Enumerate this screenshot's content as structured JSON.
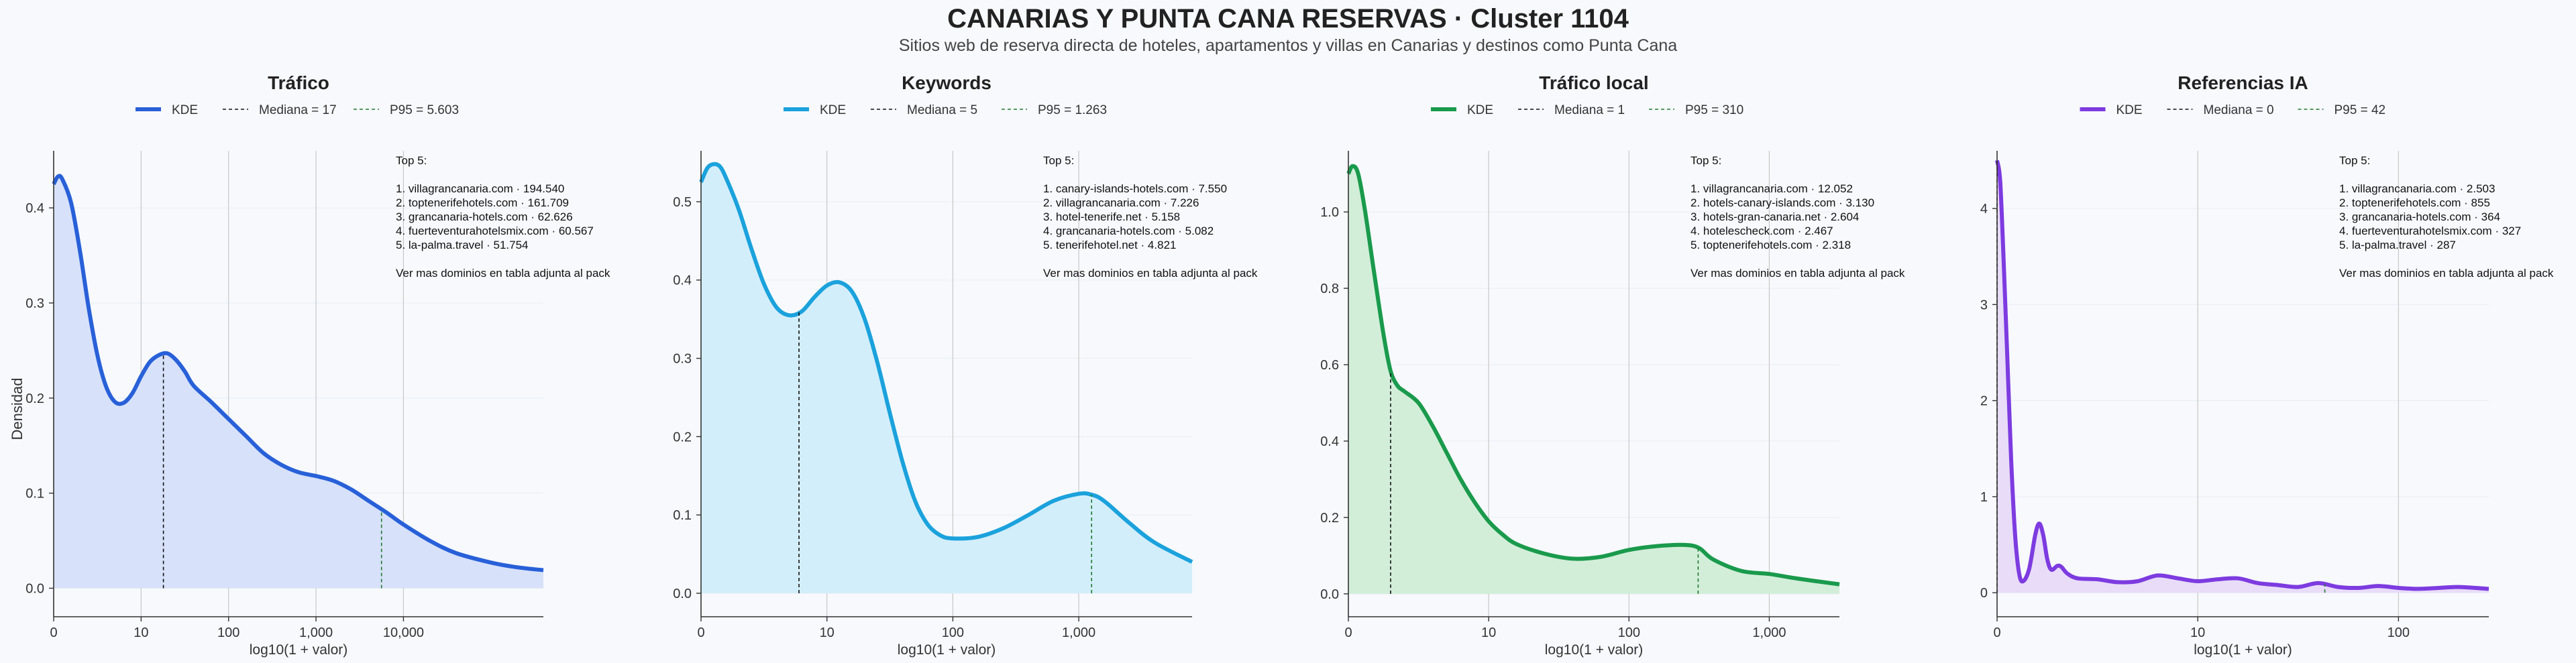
{
  "title": "CANARIAS Y PUNTA CANA RESERVAS · Cluster 1104",
  "subtitle": "Sitios web de reserva directa de hoteles, apartamentos y villas en Canarias y destinos como Punta Cana",
  "ylabel": "Densidad",
  "chart_data": [
    {
      "type": "area",
      "title": "Tráfico",
      "xlabel": "log10(1 + valor)",
      "ylabel": "Densidad",
      "color": "#2860d8",
      "fill": "#d7e1fa",
      "x_scale": "log10(1+x)",
      "xlim": [
        0,
        5.6
      ],
      "ylim": [
        -0.03,
        0.46
      ],
      "xticks": [
        {
          "v": 0,
          "label": "0"
        },
        {
          "v": 1,
          "label": "10"
        },
        {
          "v": 2,
          "label": "100"
        },
        {
          "v": 3,
          "label": "1,000"
        },
        {
          "v": 4,
          "label": "10,000"
        }
      ],
      "yticks": [
        0.0,
        0.1,
        0.2,
        0.3,
        0.4
      ],
      "ytick_labels": [
        "0.0",
        "0.1",
        "0.2",
        "0.3",
        "0.4"
      ],
      "legend": {
        "kde": "KDE",
        "median": "Mediana = 17",
        "p95": "P95 = 5.603"
      },
      "median_x": 1.255,
      "p95_x": 3.749,
      "kde": [
        [
          0,
          0.425
        ],
        [
          0.05,
          0.433
        ],
        [
          0.1,
          0.43
        ],
        [
          0.2,
          0.405
        ],
        [
          0.3,
          0.355
        ],
        [
          0.4,
          0.295
        ],
        [
          0.5,
          0.245
        ],
        [
          0.6,
          0.212
        ],
        [
          0.7,
          0.196
        ],
        [
          0.8,
          0.195
        ],
        [
          0.9,
          0.205
        ],
        [
          1.0,
          0.223
        ],
        [
          1.1,
          0.238
        ],
        [
          1.2,
          0.245
        ],
        [
          1.3,
          0.247
        ],
        [
          1.4,
          0.24
        ],
        [
          1.5,
          0.228
        ],
        [
          1.6,
          0.213
        ],
        [
          1.8,
          0.196
        ],
        [
          2.0,
          0.178
        ],
        [
          2.2,
          0.16
        ],
        [
          2.4,
          0.142
        ],
        [
          2.6,
          0.13
        ],
        [
          2.8,
          0.122
        ],
        [
          3.0,
          0.118
        ],
        [
          3.2,
          0.113
        ],
        [
          3.4,
          0.104
        ],
        [
          3.6,
          0.092
        ],
        [
          3.8,
          0.08
        ],
        [
          4.0,
          0.067
        ],
        [
          4.3,
          0.05
        ],
        [
          4.6,
          0.037
        ],
        [
          5.0,
          0.027
        ],
        [
          5.3,
          0.022
        ],
        [
          5.6,
          0.019
        ]
      ],
      "annotation": [
        "Top 5:",
        "",
        "1. villagrancanaria.com · 194.540",
        "2. toptenerifehotels.com · 161.709",
        "3. grancanaria-hotels.com · 62.626",
        "4. fuerteventurahotelsmix.com · 60.567",
        "5. la-palma.travel · 51.754",
        "",
        "Ver mas dominios en tabla adjunta al pack"
      ]
    },
    {
      "type": "area",
      "title": "Keywords",
      "xlabel": "log10(1 + valor)",
      "color": "#1ba2dc",
      "fill": "#d3eefb",
      "x_scale": "log10(1+x)",
      "xlim": [
        0,
        3.9
      ],
      "ylim": [
        -0.03,
        0.565
      ],
      "xticks": [
        {
          "v": 0,
          "label": "0"
        },
        {
          "v": 1,
          "label": "10"
        },
        {
          "v": 2,
          "label": "100"
        },
        {
          "v": 3,
          "label": "1,000"
        }
      ],
      "yticks": [
        0.0,
        0.1,
        0.2,
        0.3,
        0.4,
        0.5
      ],
      "ytick_labels": [
        "0.0",
        "0.1",
        "0.2",
        "0.3",
        "0.4",
        "0.5"
      ],
      "legend": {
        "kde": "KDE",
        "median": "Mediana = 5",
        "p95": "P95 = 1.263"
      },
      "median_x": 0.778,
      "p95_x": 3.102,
      "kde": [
        [
          0,
          0.525
        ],
        [
          0.05,
          0.543
        ],
        [
          0.1,
          0.548
        ],
        [
          0.15,
          0.545
        ],
        [
          0.2,
          0.53
        ],
        [
          0.3,
          0.49
        ],
        [
          0.4,
          0.44
        ],
        [
          0.5,
          0.395
        ],
        [
          0.6,
          0.365
        ],
        [
          0.7,
          0.355
        ],
        [
          0.8,
          0.36
        ],
        [
          0.9,
          0.378
        ],
        [
          1.0,
          0.393
        ],
        [
          1.1,
          0.397
        ],
        [
          1.2,
          0.385
        ],
        [
          1.3,
          0.35
        ],
        [
          1.4,
          0.295
        ],
        [
          1.5,
          0.23
        ],
        [
          1.6,
          0.168
        ],
        [
          1.7,
          0.118
        ],
        [
          1.8,
          0.088
        ],
        [
          1.9,
          0.074
        ],
        [
          2.0,
          0.07
        ],
        [
          2.2,
          0.072
        ],
        [
          2.4,
          0.083
        ],
        [
          2.6,
          0.1
        ],
        [
          2.8,
          0.118
        ],
        [
          3.0,
          0.127
        ],
        [
          3.1,
          0.126
        ],
        [
          3.2,
          0.118
        ],
        [
          3.4,
          0.09
        ],
        [
          3.6,
          0.065
        ],
        [
          3.9,
          0.04
        ]
      ],
      "annotation": [
        "Top 5:",
        "",
        "1. canary-islands-hotels.com · 7.550",
        "2. villagrancanaria.com · 7.226",
        "3. hotel-tenerife.net · 5.158",
        "4. grancanaria-hotels.com · 5.082",
        "5. tenerifehotel.net · 4.821",
        "",
        "Ver mas dominios en tabla adjunta al pack"
      ]
    },
    {
      "type": "area",
      "title": "Tráfico local",
      "xlabel": "log10(1 + valor)",
      "color": "#1a9a4c",
      "fill": "#d2eed9",
      "x_scale": "log10(1+x)",
      "xlim": [
        0,
        3.5
      ],
      "ylim": [
        -0.06,
        1.16
      ],
      "xticks": [
        {
          "v": 0,
          "label": "0"
        },
        {
          "v": 1,
          "label": "10"
        },
        {
          "v": 2,
          "label": "100"
        },
        {
          "v": 3,
          "label": "1,000"
        }
      ],
      "yticks": [
        0.0,
        0.2,
        0.4,
        0.6,
        0.8,
        1.0
      ],
      "ytick_labels": [
        "0.0",
        "0.2",
        "0.4",
        "0.6",
        "0.8",
        "1.0"
      ],
      "legend": {
        "kde": "KDE",
        "median": "Mediana = 1",
        "p95": "P95 = 310"
      },
      "median_x": 0.301,
      "p95_x": 2.493,
      "kde": [
        [
          0,
          1.1
        ],
        [
          0.03,
          1.12
        ],
        [
          0.07,
          1.1
        ],
        [
          0.12,
          1.0
        ],
        [
          0.18,
          0.85
        ],
        [
          0.25,
          0.68
        ],
        [
          0.3,
          0.585
        ],
        [
          0.35,
          0.545
        ],
        [
          0.4,
          0.53
        ],
        [
          0.5,
          0.5
        ],
        [
          0.6,
          0.44
        ],
        [
          0.7,
          0.37
        ],
        [
          0.8,
          0.3
        ],
        [
          0.9,
          0.24
        ],
        [
          1.0,
          0.19
        ],
        [
          1.1,
          0.155
        ],
        [
          1.2,
          0.13
        ],
        [
          1.4,
          0.105
        ],
        [
          1.6,
          0.092
        ],
        [
          1.8,
          0.097
        ],
        [
          2.0,
          0.115
        ],
        [
          2.2,
          0.125
        ],
        [
          2.4,
          0.128
        ],
        [
          2.5,
          0.12
        ],
        [
          2.6,
          0.09
        ],
        [
          2.8,
          0.06
        ],
        [
          3.0,
          0.052
        ],
        [
          3.2,
          0.04
        ],
        [
          3.5,
          0.025
        ]
      ],
      "annotation": [
        "Top 5:",
        "",
        "1. villagrancanaria.com · 12.052",
        "2. hotels-canary-islands.com · 3.130",
        "3. hotels-gran-canaria.net · 2.604",
        "4. hotelescheck.com · 2.467",
        "5. toptenerifehotels.com · 2.318",
        "",
        "Ver mas dominios en tabla adjunta al pack"
      ]
    },
    {
      "type": "area",
      "title": "Referencias IA",
      "xlabel": "log10(1 + valor)",
      "color": "#7d3be0",
      "fill": "#e8dcf8",
      "x_scale": "log10(1+x)",
      "xlim": [
        0,
        2.45
      ],
      "ylim": [
        -0.25,
        4.6
      ],
      "xticks": [
        {
          "v": 0,
          "label": "0"
        },
        {
          "v": 1,
          "label": "10"
        },
        {
          "v": 2,
          "label": "100"
        }
      ],
      "yticks": [
        0,
        1,
        2,
        3,
        4
      ],
      "ytick_labels": [
        "0",
        "1",
        "2",
        "3",
        "4"
      ],
      "legend": {
        "kde": "KDE",
        "median": "Mediana = 0",
        "p95": "P95 = 42"
      },
      "median_x": 0,
      "p95_x": 1.633,
      "kde": [
        [
          0,
          4.5
        ],
        [
          0.015,
          4.3
        ],
        [
          0.03,
          3.6
        ],
        [
          0.05,
          2.5
        ],
        [
          0.07,
          1.4
        ],
        [
          0.09,
          0.6
        ],
        [
          0.11,
          0.2
        ],
        [
          0.13,
          0.12
        ],
        [
          0.16,
          0.25
        ],
        [
          0.19,
          0.6
        ],
        [
          0.21,
          0.72
        ],
        [
          0.23,
          0.6
        ],
        [
          0.25,
          0.35
        ],
        [
          0.27,
          0.24
        ],
        [
          0.3,
          0.28
        ],
        [
          0.32,
          0.27
        ],
        [
          0.35,
          0.2
        ],
        [
          0.4,
          0.15
        ],
        [
          0.5,
          0.14
        ],
        [
          0.6,
          0.11
        ],
        [
          0.7,
          0.12
        ],
        [
          0.8,
          0.18
        ],
        [
          0.9,
          0.15
        ],
        [
          1.0,
          0.12
        ],
        [
          1.1,
          0.14
        ],
        [
          1.2,
          0.15
        ],
        [
          1.3,
          0.1
        ],
        [
          1.4,
          0.08
        ],
        [
          1.5,
          0.06
        ],
        [
          1.6,
          0.1
        ],
        [
          1.7,
          0.06
        ],
        [
          1.8,
          0.05
        ],
        [
          1.9,
          0.07
        ],
        [
          2.0,
          0.05
        ],
        [
          2.1,
          0.04
        ],
        [
          2.2,
          0.05
        ],
        [
          2.3,
          0.06
        ],
        [
          2.45,
          0.04
        ]
      ],
      "annotation": [
        "Top 5:",
        "",
        "1. villagrancanaria.com · 2.503",
        "2. toptenerifehotels.com · 855",
        "3. grancanaria-hotels.com · 364",
        "4. fuerteventurahotelsmix.com · 327",
        "5. la-palma.travel · 287",
        "",
        "Ver mas dominios en tabla adjunta al pack"
      ]
    }
  ]
}
